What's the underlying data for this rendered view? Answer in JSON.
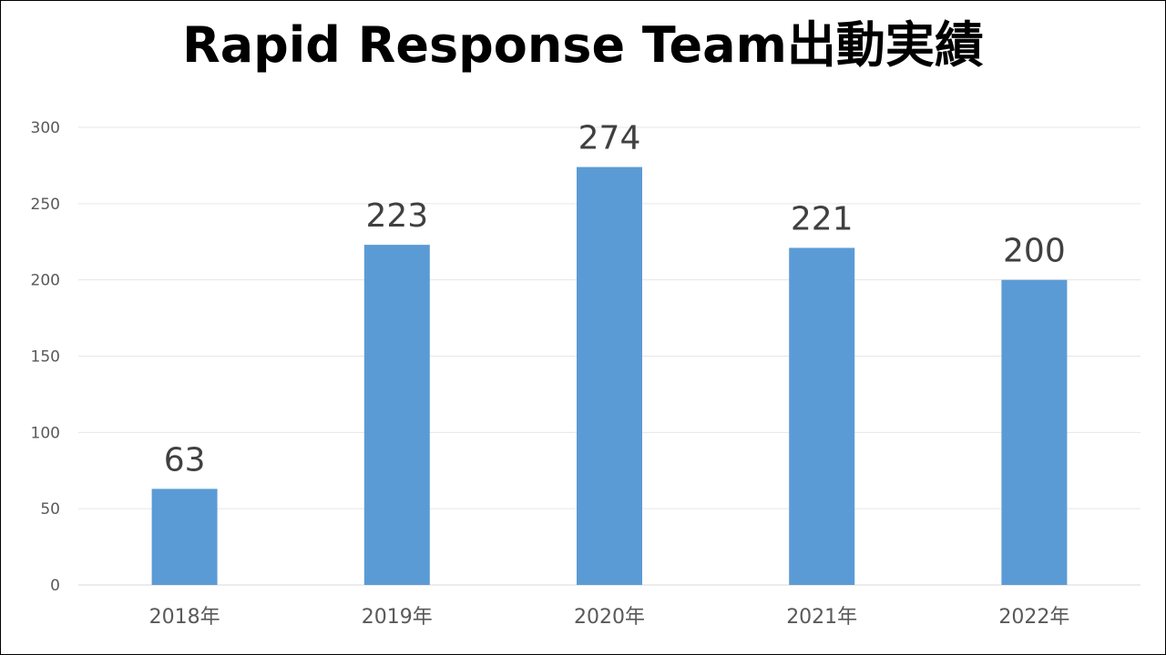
{
  "chart_data": {
    "type": "bar",
    "title": "Rapid Response Team出動実績",
    "categories": [
      "2018年",
      "2019年",
      "2020年",
      "2021年",
      "2022年"
    ],
    "values": [
      63,
      223,
      274,
      221,
      200
    ],
    "ylim": [
      0,
      300
    ],
    "yticks": [
      0,
      50,
      100,
      150,
      200,
      250,
      300
    ],
    "grid": true,
    "data_labels": true,
    "bar_color": "#5B9BD5",
    "xlabel": "",
    "ylabel": ""
  }
}
